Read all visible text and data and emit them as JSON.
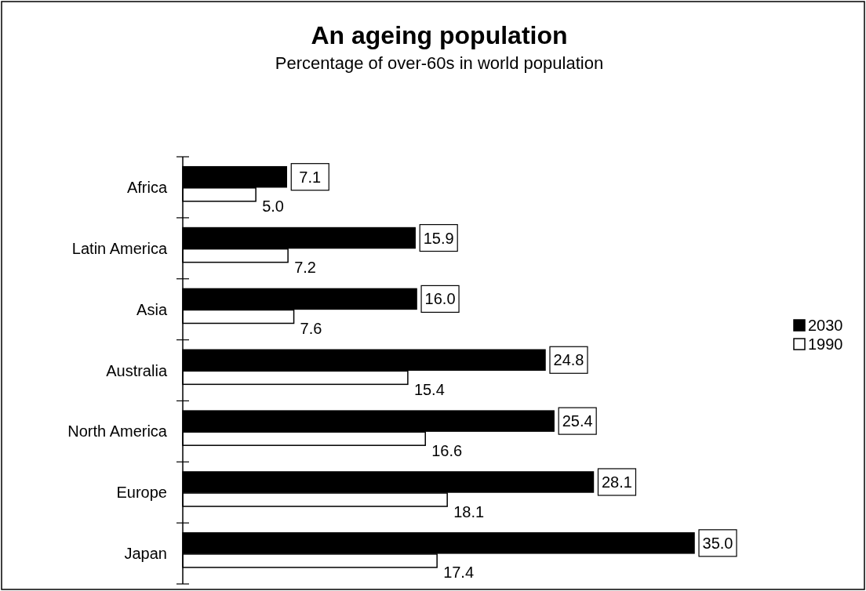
{
  "chart_data": {
    "type": "bar",
    "orientation": "horizontal",
    "title": "An ageing population",
    "subtitle": "Percentage of over-60s in world population",
    "categories": [
      "Africa",
      "Latin America",
      "Asia",
      "Australia",
      "North America",
      "Europe",
      "Japan"
    ],
    "series": [
      {
        "name": "2030",
        "color": "#000000",
        "values": [
          7.1,
          15.9,
          16.0,
          24.8,
          25.4,
          28.1,
          35.0
        ],
        "value_labels": [
          "7.1",
          "15.9",
          "16.0",
          "24.8",
          "25.4",
          "28.1",
          "35.0"
        ]
      },
      {
        "name": "1990",
        "color": "#ffffff",
        "values": [
          5.0,
          7.2,
          7.6,
          15.4,
          16.6,
          18.1,
          17.4
        ],
        "value_labels": [
          "5.0",
          "7.2",
          "7.6",
          "15.4",
          "16.6",
          "18.1",
          "17.4"
        ]
      }
    ],
    "legend": "right"
  }
}
